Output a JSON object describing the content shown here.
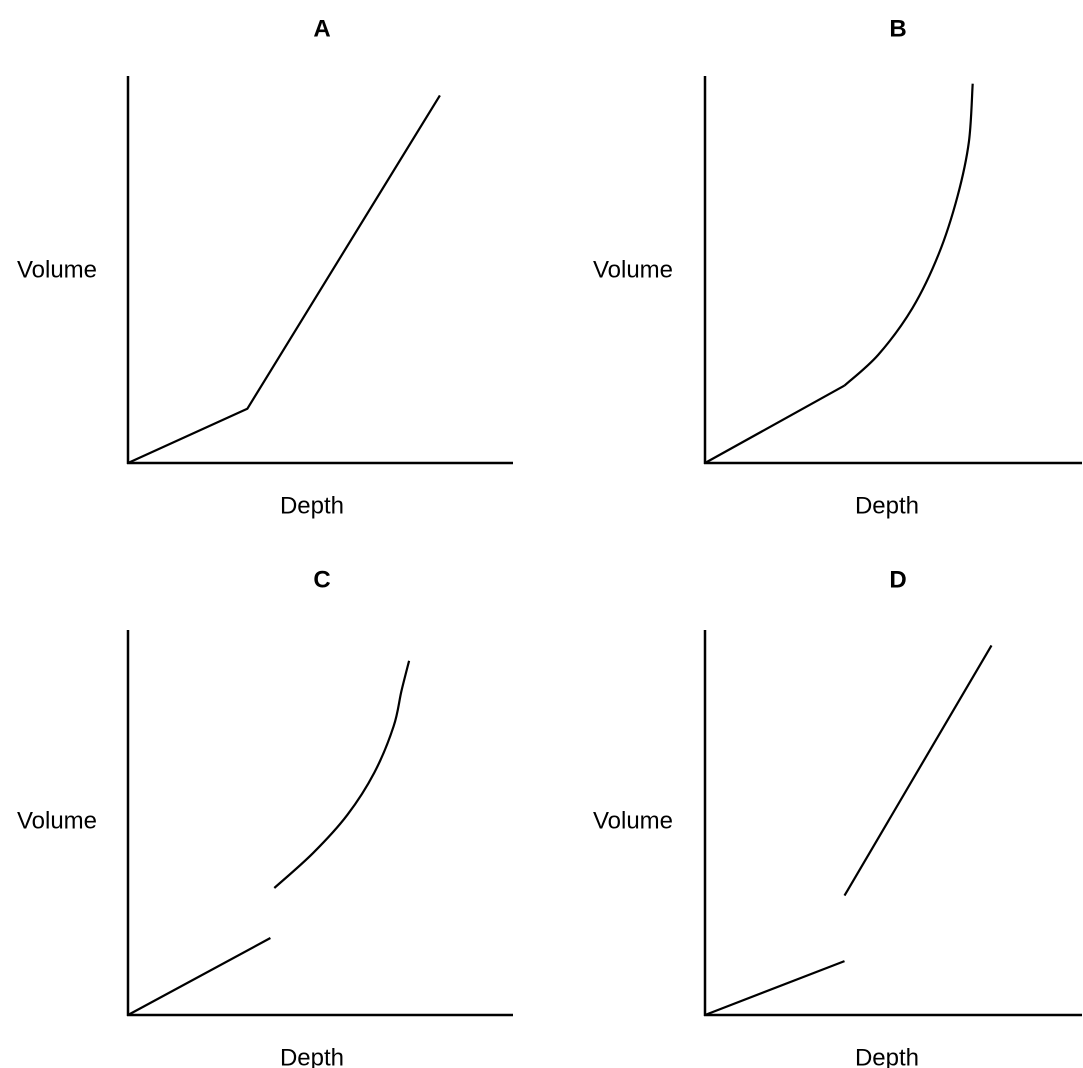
{
  "chart_data": [
    {
      "type": "line",
      "title": "A",
      "xlabel": "Depth",
      "ylabel": "Volume",
      "grid": false,
      "xlim": [
        0,
        1
      ],
      "ylim": [
        0,
        1
      ],
      "series": [
        {
          "style": "straight",
          "points": [
            [
              0,
              0
            ],
            [
              0.31,
              0.14
            ],
            [
              0.81,
              0.95
            ]
          ]
        }
      ]
    },
    {
      "type": "line",
      "title": "B",
      "xlabel": "Depth",
      "ylabel": "Volume",
      "grid": false,
      "xlim": [
        0,
        1
      ],
      "ylim": [
        0,
        1
      ],
      "series": [
        {
          "style": "straight",
          "points": [
            [
              0,
              0
            ],
            [
              0.37,
              0.2
            ]
          ]
        },
        {
          "style": "curve",
          "points": [
            [
              0.37,
              0.2
            ],
            [
              0.46,
              0.28
            ],
            [
              0.55,
              0.4
            ],
            [
              0.62,
              0.54
            ],
            [
              0.67,
              0.69
            ],
            [
              0.7,
              0.83
            ],
            [
              0.71,
              0.98
            ]
          ]
        }
      ]
    },
    {
      "type": "line",
      "title": "C",
      "xlabel": "Depth",
      "ylabel": "Volume",
      "grid": false,
      "xlim": [
        0,
        1
      ],
      "ylim": [
        0,
        1
      ],
      "series": [
        {
          "style": "straight",
          "points": [
            [
              0,
              0
            ],
            [
              0.37,
              0.2
            ]
          ]
        },
        {
          "style": "curve",
          "points": [
            [
              0.38,
              0.33
            ],
            [
              0.48,
              0.42
            ],
            [
              0.57,
              0.52
            ],
            [
              0.64,
              0.63
            ],
            [
              0.69,
              0.75
            ],
            [
              0.71,
              0.84
            ],
            [
              0.73,
              0.92
            ]
          ]
        }
      ]
    },
    {
      "type": "line",
      "title": "D",
      "xlabel": "Depth",
      "ylabel": "Volume",
      "grid": false,
      "xlim": [
        0,
        1
      ],
      "ylim": [
        0,
        1
      ],
      "series": [
        {
          "style": "straight",
          "points": [
            [
              0,
              0
            ],
            [
              0.37,
              0.14
            ]
          ]
        },
        {
          "style": "straight",
          "points": [
            [
              0.37,
              0.31
            ],
            [
              0.76,
              0.96
            ]
          ]
        }
      ]
    }
  ]
}
